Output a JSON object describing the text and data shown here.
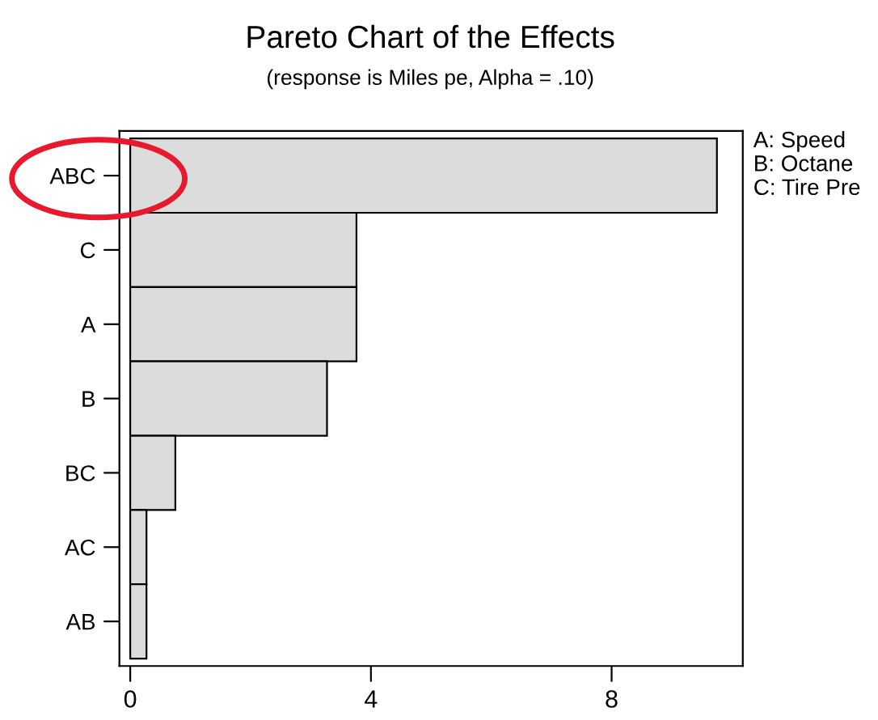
{
  "chart_data": {
    "type": "bar",
    "orientation": "horizontal",
    "title": "Pareto Chart of the Effects",
    "subtitle": "(response is Miles pe, Alpha = .10)",
    "categories": [
      "ABC",
      "C",
      "A",
      "B",
      "BC",
      "AC",
      "AB"
    ],
    "values": [
      9.75,
      3.76,
      3.76,
      3.27,
      0.75,
      0.27,
      0.27
    ],
    "color": "#dcdcdc",
    "xlim": [
      -0.18,
      10.18
    ],
    "xticks": [
      0,
      4,
      8
    ],
    "grid": false,
    "annotations": [
      "A: Speed",
      "B: Octane",
      "C: Tire Pre"
    ]
  }
}
